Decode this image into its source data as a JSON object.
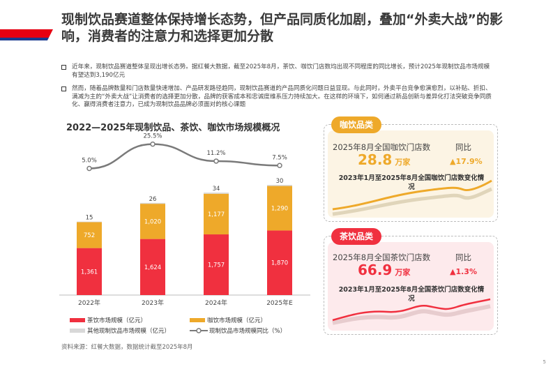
{
  "header": {
    "title": "现制饮品赛道整体保持增长态势，但产品同质化加剧，叠加“外卖大战”的影响，消费者的注意力和选择更加分散"
  },
  "bullets": [
    "近年来，现制饮品赛道整体呈现出增长态势。据红餐大数据，截至2025年8月，茶饮、咖饮门店数均出现不同程度的同比增长，预计2025年现制饮品市场规模有望达到3,190亿元",
    "然而，随着品牌数量和门店数量快速增加、产品研发路径趋同，现制饮品赛道的产品同质化问题日益显现。与此同时，外卖平台竞争愈演愈烈，以补贴、折扣、满减为主的“外卖大战”让消费者的选择更加分散，品牌的获客成本和忠诚度维系压力持续加大。在这样的环境下，如何通过新品创新与差异化打法突破竞争同质化、赢得消费者注意力，已成为现制饮品品牌必须面对的核心课题"
  ],
  "chart_data": {
    "type": "bar",
    "title": "2022—2025年现制饮品、茶饮、咖饮市场规模概况",
    "categories": [
      "2022年",
      "2023年",
      "2024年",
      "2025年E"
    ],
    "stacked": true,
    "series": [
      {
        "name": "茶饮市场规模（亿元）",
        "values": [
          1361,
          1624,
          1757,
          1870
        ],
        "color": "#f0303f"
      },
      {
        "name": "咖饮市场规模（亿元）",
        "values": [
          752,
          1020,
          1177,
          1290
        ],
        "color": "#eea92a"
      },
      {
        "name": "其他现制饮品市场规模（亿元）",
        "values": [
          15,
          26,
          34,
          30
        ],
        "color": "#d8d8d8"
      }
    ],
    "line": {
      "name": "现制饮品市场规模同比（%）",
      "values": [
        5.0,
        25.5,
        11.2,
        7.5
      ],
      "labels": [
        "5.0%",
        "25.5%",
        "11.2%",
        "7.5%"
      ],
      "color": "#7a7a7a"
    }
  },
  "source": "资料来源：红餐大数据，数据统计截至2025年8月",
  "coffee": {
    "tag": "咖饮品类",
    "label": "2025年8月全国咖饮门店数",
    "yoy_label": "同比",
    "value": "28.8",
    "unit": "万家",
    "yoy": "17.9%",
    "sub": "2023年1月至2025年8月全国咖饮门店数变化情况",
    "color": "#eea92a"
  },
  "tea": {
    "tag": "茶饮品类",
    "label": "2025年8月全国茶饮门店数",
    "yoy_label": "同比",
    "value": "66.9",
    "unit": "万家",
    "yoy": "1.3%",
    "sub": "2023年1月至2025年8月全国茶饮门店数变化情况",
    "color": "#f0303f"
  },
  "page": "5"
}
